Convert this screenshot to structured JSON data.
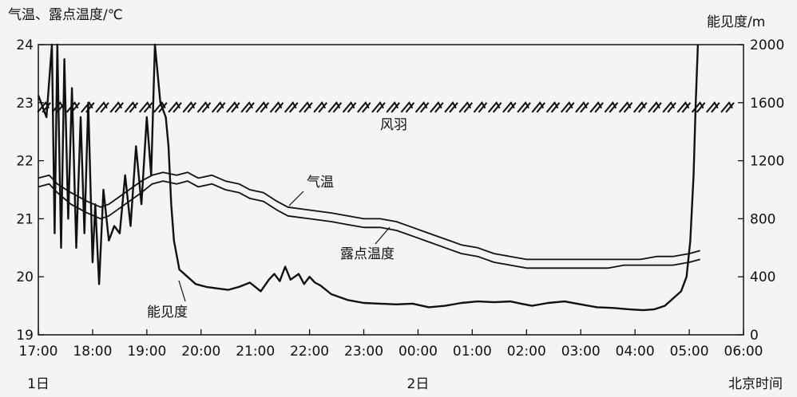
{
  "chart_data": {
    "type": "line",
    "title": "",
    "y_left_label": "气温、露点温度/℃",
    "y_right_label": "能见度/m",
    "x_label": "北京时间",
    "x_ticks": [
      "17:00",
      "18:00",
      "19:00",
      "20:00",
      "21:00",
      "22:00",
      "23:00",
      "00:00",
      "01:00",
      "02:00",
      "03:00",
      "04:00",
      "05:00",
      "06:00"
    ],
    "date_labels": [
      {
        "label": "1日",
        "at": "17:00"
      },
      {
        "label": "2日",
        "at": "00:00"
      }
    ],
    "y_left_ticks": [
      19,
      20,
      21,
      22,
      23,
      24
    ],
    "y_left_range": [
      19,
      24
    ],
    "y_right_ticks": [
      0,
      400,
      800,
      1200,
      1600,
      2000
    ],
    "y_right_range": [
      0,
      2000
    ],
    "annotations": {
      "wind": "风羽",
      "temperature": "气温",
      "dewpoint": "露点温度",
      "visibility": "能见度"
    },
    "series": [
      {
        "name": "气温",
        "axis": "left",
        "points": [
          [
            17.0,
            21.7
          ],
          [
            17.2,
            21.75
          ],
          [
            17.35,
            21.6
          ],
          [
            17.6,
            21.45
          ],
          [
            17.9,
            21.3
          ],
          [
            18.15,
            21.2
          ],
          [
            18.3,
            21.25
          ],
          [
            18.6,
            21.45
          ],
          [
            18.9,
            21.65
          ],
          [
            19.1,
            21.75
          ],
          [
            19.3,
            21.8
          ],
          [
            19.55,
            21.75
          ],
          [
            19.75,
            21.8
          ],
          [
            19.95,
            21.7
          ],
          [
            20.2,
            21.75
          ],
          [
            20.45,
            21.65
          ],
          [
            20.7,
            21.6
          ],
          [
            20.9,
            21.5
          ],
          [
            21.15,
            21.45
          ],
          [
            21.4,
            21.3
          ],
          [
            21.6,
            21.2
          ],
          [
            22.0,
            21.15
          ],
          [
            22.4,
            21.1
          ],
          [
            22.7,
            21.05
          ],
          [
            23.0,
            21.0
          ],
          [
            23.3,
            21.0
          ],
          [
            23.6,
            20.95
          ],
          [
            23.9,
            20.85
          ],
          [
            24.2,
            20.75
          ],
          [
            24.5,
            20.65
          ],
          [
            24.8,
            20.55
          ],
          [
            25.1,
            20.5
          ],
          [
            25.4,
            20.4
          ],
          [
            25.7,
            20.35
          ],
          [
            26.0,
            20.3
          ],
          [
            26.3,
            20.3
          ],
          [
            26.6,
            20.3
          ],
          [
            26.9,
            20.3
          ],
          [
            27.2,
            20.3
          ],
          [
            27.5,
            20.3
          ],
          [
            27.8,
            20.3
          ],
          [
            28.1,
            20.3
          ],
          [
            28.4,
            20.35
          ],
          [
            28.7,
            20.35
          ],
          [
            29.0,
            20.4
          ],
          [
            29.2,
            20.45
          ]
        ]
      },
      {
        "name": "露点温度",
        "axis": "left",
        "points": [
          [
            17.0,
            21.55
          ],
          [
            17.2,
            21.6
          ],
          [
            17.35,
            21.45
          ],
          [
            17.6,
            21.25
          ],
          [
            17.9,
            21.1
          ],
          [
            18.15,
            21.0
          ],
          [
            18.3,
            21.05
          ],
          [
            18.6,
            21.25
          ],
          [
            18.9,
            21.45
          ],
          [
            19.1,
            21.6
          ],
          [
            19.3,
            21.65
          ],
          [
            19.55,
            21.6
          ],
          [
            19.75,
            21.65
          ],
          [
            19.95,
            21.55
          ],
          [
            20.2,
            21.6
          ],
          [
            20.45,
            21.5
          ],
          [
            20.7,
            21.45
          ],
          [
            20.9,
            21.35
          ],
          [
            21.15,
            21.3
          ],
          [
            21.4,
            21.15
          ],
          [
            21.6,
            21.05
          ],
          [
            22.0,
            21.0
          ],
          [
            22.4,
            20.95
          ],
          [
            22.7,
            20.9
          ],
          [
            23.0,
            20.85
          ],
          [
            23.3,
            20.85
          ],
          [
            23.6,
            20.8
          ],
          [
            23.9,
            20.7
          ],
          [
            24.2,
            20.6
          ],
          [
            24.5,
            20.5
          ],
          [
            24.8,
            20.4
          ],
          [
            25.1,
            20.35
          ],
          [
            25.4,
            20.25
          ],
          [
            25.7,
            20.2
          ],
          [
            26.0,
            20.15
          ],
          [
            26.3,
            20.15
          ],
          [
            26.6,
            20.15
          ],
          [
            26.9,
            20.15
          ],
          [
            27.2,
            20.15
          ],
          [
            27.5,
            20.15
          ],
          [
            27.8,
            20.2
          ],
          [
            28.1,
            20.2
          ],
          [
            28.4,
            20.2
          ],
          [
            28.7,
            20.2
          ],
          [
            29.0,
            20.25
          ],
          [
            29.2,
            20.3
          ]
        ]
      },
      {
        "name": "能见度",
        "axis": "right",
        "points": [
          [
            17.0,
            1650
          ],
          [
            17.15,
            1500
          ],
          [
            17.25,
            2000
          ],
          [
            17.3,
            700
          ],
          [
            17.35,
            2000
          ],
          [
            17.42,
            600
          ],
          [
            17.48,
            1900
          ],
          [
            17.55,
            800
          ],
          [
            17.62,
            1700
          ],
          [
            17.7,
            600
          ],
          [
            17.78,
            1500
          ],
          [
            17.85,
            700
          ],
          [
            17.92,
            1600
          ],
          [
            18.0,
            500
          ],
          [
            18.05,
            900
          ],
          [
            18.12,
            350
          ],
          [
            18.2,
            1000
          ],
          [
            18.3,
            650
          ],
          [
            18.4,
            750
          ],
          [
            18.5,
            700
          ],
          [
            18.6,
            1100
          ],
          [
            18.7,
            750
          ],
          [
            18.8,
            1300
          ],
          [
            18.9,
            900
          ],
          [
            19.0,
            1500
          ],
          [
            19.08,
            1100
          ],
          [
            19.15,
            2000
          ],
          [
            19.25,
            1600
          ],
          [
            19.35,
            1500
          ],
          [
            19.4,
            1300
          ],
          [
            19.45,
            900
          ],
          [
            19.5,
            650
          ],
          [
            19.6,
            450
          ],
          [
            19.75,
            400
          ],
          [
            19.9,
            350
          ],
          [
            20.1,
            330
          ],
          [
            20.3,
            320
          ],
          [
            20.5,
            310
          ],
          [
            20.7,
            330
          ],
          [
            20.9,
            360
          ],
          [
            21.1,
            300
          ],
          [
            21.25,
            380
          ],
          [
            21.35,
            420
          ],
          [
            21.45,
            370
          ],
          [
            21.55,
            470
          ],
          [
            21.65,
            380
          ],
          [
            21.8,
            420
          ],
          [
            21.9,
            350
          ],
          [
            22.0,
            400
          ],
          [
            22.1,
            360
          ],
          [
            22.2,
            340
          ],
          [
            22.4,
            280
          ],
          [
            22.7,
            240
          ],
          [
            23.0,
            220
          ],
          [
            23.3,
            215
          ],
          [
            23.6,
            210
          ],
          [
            23.9,
            215
          ],
          [
            24.2,
            190
          ],
          [
            24.5,
            200
          ],
          [
            24.8,
            220
          ],
          [
            25.1,
            230
          ],
          [
            25.4,
            225
          ],
          [
            25.7,
            230
          ],
          [
            25.9,
            215
          ],
          [
            26.1,
            200
          ],
          [
            26.4,
            220
          ],
          [
            26.7,
            230
          ],
          [
            27.0,
            210
          ],
          [
            27.3,
            190
          ],
          [
            27.6,
            185
          ],
          [
            27.9,
            175
          ],
          [
            28.15,
            170
          ],
          [
            28.35,
            175
          ],
          [
            28.55,
            200
          ],
          [
            28.7,
            250
          ],
          [
            28.85,
            300
          ],
          [
            28.95,
            400
          ],
          [
            29.02,
            650
          ],
          [
            29.08,
            1100
          ],
          [
            29.12,
            1600
          ],
          [
            29.16,
            2000
          ]
        ]
      }
    ],
    "wind_barbs": {
      "level": 23,
      "count": 48
    }
  }
}
